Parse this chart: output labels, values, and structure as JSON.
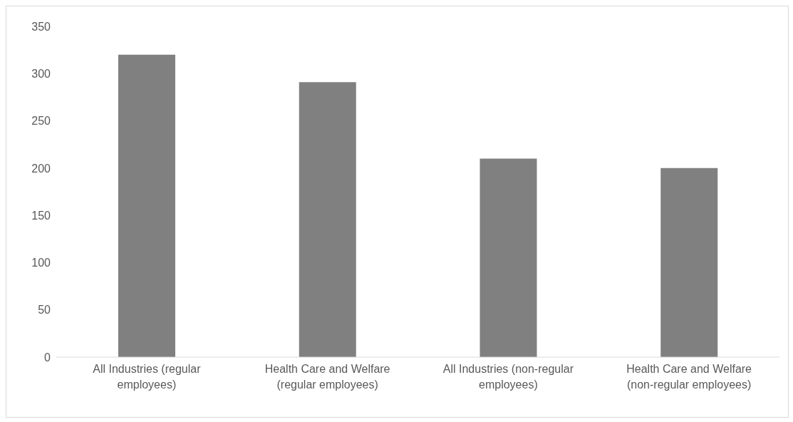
{
  "chart_data": {
    "type": "bar",
    "categories": [
      "All Industries (regular employees)",
      "Health Care and Welfare (regular employees)",
      "All Industries (non-regular employees)",
      "Health Care and Welfare (non-regular employees)"
    ],
    "values": [
      320,
      291,
      210,
      200
    ],
    "color": "#808080",
    "ylim": [
      0,
      350
    ],
    "yticks": [
      0,
      50,
      100,
      150,
      200,
      250,
      300,
      350
    ],
    "grid": false
  }
}
